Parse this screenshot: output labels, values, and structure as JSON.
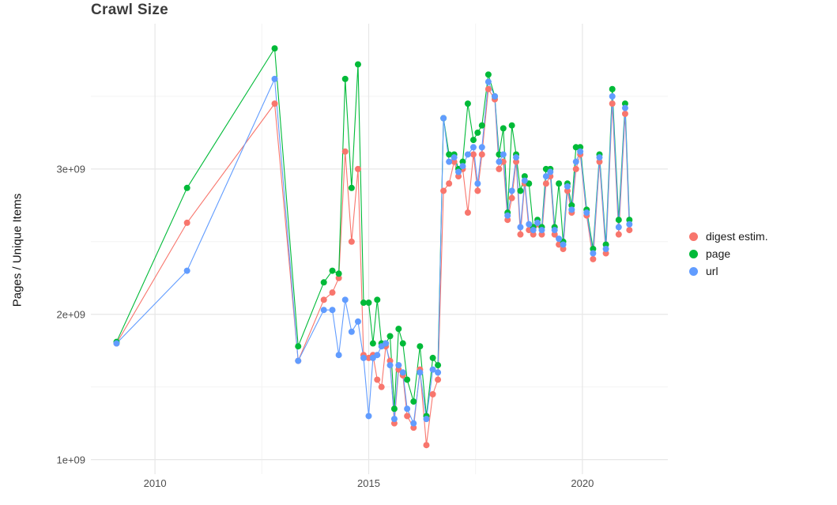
{
  "title": "Crawl Size",
  "chart_data": {
    "type": "line",
    "title": "Crawl Size",
    "xlabel": "",
    "ylabel": "Pages / Unique Items",
    "units": "values in units of 1e+09 (billions of pages / unique items)",
    "grid": true,
    "legend_position": "right",
    "x_range": [
      2008.5,
      2022.0
    ],
    "y_range": [
      0.9,
      4.0
    ],
    "x_ticks": [
      2010,
      2015,
      2020
    ],
    "x_tick_labels": [
      "2010",
      "2015",
      "2020"
    ],
    "x_minor_ticks": [
      2012.5,
      2017.5
    ],
    "y_ticks": [
      1,
      2,
      3
    ],
    "y_tick_labels": [
      "1e+09",
      "2e+09",
      "3e+09"
    ],
    "y_minor_ticks": [
      1.5,
      2.5,
      3.5
    ],
    "x": [
      2009.1,
      2010.75,
      2012.8,
      2013.35,
      2013.95,
      2014.15,
      2014.3,
      2014.45,
      2014.6,
      2014.75,
      2014.88,
      2015.0,
      2015.1,
      2015.2,
      2015.3,
      2015.4,
      2015.5,
      2015.6,
      2015.7,
      2015.8,
      2015.9,
      2016.05,
      2016.2,
      2016.35,
      2016.5,
      2016.62,
      2016.75,
      2016.88,
      2017.0,
      2017.1,
      2017.2,
      2017.32,
      2017.45,
      2017.55,
      2017.65,
      2017.8,
      2017.95,
      2018.05,
      2018.15,
      2018.25,
      2018.35,
      2018.45,
      2018.55,
      2018.65,
      2018.75,
      2018.85,
      2018.95,
      2019.05,
      2019.15,
      2019.25,
      2019.35,
      2019.45,
      2019.55,
      2019.65,
      2019.75,
      2019.85,
      2019.95,
      2020.1,
      2020.25,
      2020.4,
      2020.55,
      2020.7,
      2020.85,
      2021.0,
      2021.1
    ],
    "series": [
      {
        "name": "digest estim.",
        "color": "#F8766D",
        "values": [
          1.8,
          2.63,
          3.45,
          1.68,
          2.1,
          2.15,
          2.25,
          3.12,
          2.5,
          3.0,
          1.72,
          1.7,
          1.72,
          1.55,
          1.5,
          1.78,
          1.68,
          1.25,
          1.62,
          1.58,
          1.3,
          1.22,
          1.62,
          1.1,
          1.45,
          1.55,
          2.85,
          2.9,
          3.05,
          2.95,
          3.0,
          2.7,
          3.1,
          2.85,
          3.1,
          3.55,
          3.48,
          3.0,
          3.05,
          2.65,
          2.8,
          3.05,
          2.55,
          2.9,
          2.58,
          2.55,
          2.62,
          2.55,
          2.9,
          2.95,
          2.55,
          2.48,
          2.45,
          2.85,
          2.7,
          3.0,
          3.1,
          2.68,
          2.38,
          3.05,
          2.42,
          3.45,
          2.55,
          3.38,
          2.58
        ]
      },
      {
        "name": "page",
        "color": "#00BA38",
        "values": [
          1.81,
          2.87,
          3.83,
          1.78,
          2.22,
          2.3,
          2.28,
          3.62,
          2.87,
          3.72,
          2.08,
          2.08,
          1.8,
          2.1,
          1.8,
          1.8,
          1.85,
          1.35,
          1.9,
          1.8,
          1.55,
          1.4,
          1.78,
          1.3,
          1.7,
          1.65,
          3.35,
          3.1,
          3.1,
          3.0,
          3.05,
          3.45,
          3.2,
          3.25,
          3.3,
          3.65,
          3.5,
          3.1,
          3.28,
          2.7,
          3.3,
          3.1,
          2.85,
          2.95,
          2.9,
          2.6,
          2.65,
          2.6,
          3.0,
          3.0,
          2.6,
          2.9,
          2.5,
          2.9,
          2.75,
          3.15,
          3.15,
          2.72,
          2.45,
          3.1,
          2.48,
          3.55,
          2.65,
          3.45,
          2.65
        ]
      },
      {
        "name": "url",
        "color": "#619CFF",
        "values": [
          1.8,
          2.3,
          3.62,
          1.68,
          2.03,
          2.03,
          1.72,
          2.1,
          1.88,
          1.95,
          1.7,
          1.3,
          1.7,
          1.72,
          1.78,
          1.8,
          1.65,
          1.28,
          1.65,
          1.6,
          1.35,
          1.25,
          1.6,
          1.28,
          1.62,
          1.6,
          3.35,
          3.05,
          3.08,
          2.98,
          3.02,
          3.1,
          3.15,
          2.9,
          3.15,
          3.6,
          3.5,
          3.05,
          3.1,
          2.68,
          2.85,
          3.08,
          2.6,
          2.92,
          2.62,
          2.58,
          2.63,
          2.58,
          2.95,
          2.98,
          2.58,
          2.52,
          2.48,
          2.88,
          2.72,
          3.05,
          3.12,
          2.7,
          2.42,
          3.08,
          2.45,
          3.5,
          2.6,
          3.42,
          2.62
        ]
      }
    ],
    "style": {
      "major_grid_color": "#e7e7e7",
      "minor_grid_color": "#f3f3f3",
      "background": "#ffffff",
      "point_radius": 4
    }
  }
}
